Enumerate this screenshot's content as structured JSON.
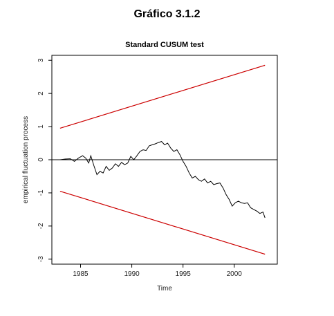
{
  "page_title": "Gráfico 3.1.2",
  "chart_data": {
    "type": "line",
    "title": "Standard CUSUM test",
    "xlabel": "Time",
    "ylabel": "empirical fluctuation process",
    "xlim": [
      1982.2,
      2004.2
    ],
    "ylim": [
      -3.15,
      3.15
    ],
    "x_ticks": [
      1985,
      1990,
      1995,
      2000
    ],
    "y_ticks": [
      -3,
      -2,
      -1,
      0,
      1,
      2,
      3
    ],
    "grid": false,
    "colors": {
      "process": "#000000",
      "boundary": "#cc0000",
      "zero_line": "#000000",
      "axes": "#000000"
    },
    "boundaries": {
      "upper": {
        "x": [
          1983.0,
          2003.0
        ],
        "y": [
          0.95,
          2.85
        ]
      },
      "lower": {
        "x": [
          1983.0,
          2003.0
        ],
        "y": [
          -0.95,
          -2.85
        ]
      }
    },
    "zero_line": 0,
    "series": [
      {
        "x": [
          1983.0,
          1983.5,
          1984.0,
          1984.4,
          1984.8,
          1985.2,
          1985.5,
          1985.8,
          1986.0,
          1986.3,
          1986.6,
          1986.9,
          1987.2,
          1987.5,
          1987.8,
          1988.1,
          1988.4,
          1988.7,
          1989.0,
          1989.3,
          1989.6,
          1989.9,
          1990.2,
          1990.5,
          1990.8,
          1991.1,
          1991.4,
          1991.7,
          1992.0,
          1992.3,
          1992.6,
          1992.9,
          1993.2,
          1993.5,
          1993.8,
          1994.1,
          1994.4,
          1994.7,
          1995.0,
          1995.3,
          1995.6,
          1995.9,
          1996.2,
          1996.5,
          1996.8,
          1997.1,
          1997.4,
          1997.7,
          1998.0,
          1998.3,
          1998.6,
          1998.9,
          1999.2,
          1999.5,
          1999.8,
          2000.1,
          2000.4,
          2000.7,
          2001.0,
          2001.3,
          2001.6,
          2001.9,
          2002.2,
          2002.5,
          2002.8,
          2003.0
        ],
        "y": [
          0.0,
          0.02,
          0.03,
          -0.05,
          0.05,
          0.12,
          0.05,
          -0.1,
          0.12,
          -0.18,
          -0.45,
          -0.35,
          -0.4,
          -0.2,
          -0.32,
          -0.25,
          -0.12,
          -0.2,
          -0.08,
          -0.15,
          -0.1,
          0.1,
          0.0,
          0.12,
          0.25,
          0.3,
          0.28,
          0.42,
          0.45,
          0.48,
          0.52,
          0.55,
          0.45,
          0.5,
          0.35,
          0.25,
          0.3,
          0.15,
          -0.05,
          -0.2,
          -0.4,
          -0.55,
          -0.5,
          -0.6,
          -0.65,
          -0.58,
          -0.7,
          -0.65,
          -0.75,
          -0.72,
          -0.7,
          -0.85,
          -1.05,
          -1.2,
          -1.4,
          -1.3,
          -1.25,
          -1.3,
          -1.32,
          -1.3,
          -1.45,
          -1.5,
          -1.55,
          -1.62,
          -1.58,
          -1.75
        ]
      }
    ]
  }
}
